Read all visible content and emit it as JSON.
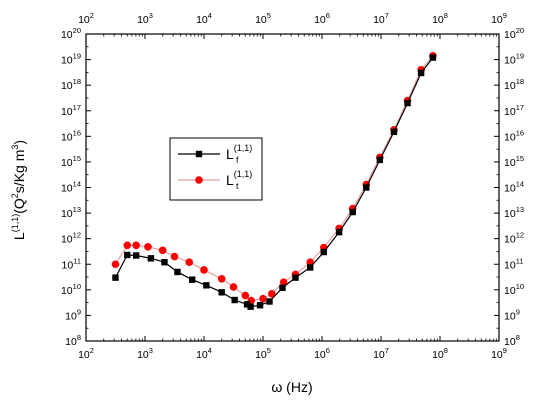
{
  "chart_data": {
    "type": "line",
    "xscale": "log",
    "yscale": "log",
    "xlim": [
      100,
      1000000000
    ],
    "ylim": [
      100000000,
      100000000000000000000
    ],
    "x_tick_exponents": [
      2,
      3,
      4,
      5,
      6,
      7,
      8,
      9
    ],
    "y_tick_exponents": [
      8,
      9,
      10,
      11,
      12,
      13,
      14,
      15,
      16,
      17,
      18,
      19,
      20
    ],
    "tick_base": "10",
    "xlabel": "ω (Hz)",
    "ylabel": {
      "prefix": "L",
      "superscript": "(1,1)",
      "body": "(Q",
      "body_superscript": "2",
      "unit": "s/Kg m",
      "unit_superscript": "3",
      "suffix": ")"
    },
    "grid": false,
    "mirror_ticks": "top-right",
    "legend_position": "center-left",
    "series": [
      {
        "label_main": "L",
        "label_sub": "f",
        "label_sup": "(1,1)",
        "color": "#000000",
        "line_color": "#000000",
        "marker": "square",
        "x": [
          316,
          501,
          708,
          1259,
          2138,
          3548,
          6310,
          10965,
          19953,
          33113,
          53703,
          61660,
          89125,
          128825,
          213796,
          354813,
          630957,
          1071519,
          1949845,
          3311311,
          5623413,
          9549926,
          16595869,
          28183829,
          47863009,
          75857758
        ],
        "y": [
          30000000000.0,
          230000000000.0,
          220000000000.0,
          170000000000.0,
          120000000000.0,
          50000000000.0,
          25000000000.0,
          15000000000.0,
          8000000000.0,
          4000000000.0,
          2700000000.0,
          2200000000.0,
          2500000000.0,
          3500000000.0,
          12000000000.0,
          30000000000.0,
          75000000000.0,
          300000000000.0,
          1800000000000.0,
          11000000000000.0,
          100000000000000.0,
          1200000000000000.0,
          1.5e+16,
          2e+17,
          3e+18,
          1.2e+19
        ]
      },
      {
        "label_main": "L",
        "label_sub": "t",
        "label_sup": "(1,1)",
        "color": "#ff0000",
        "line_color": "#e8a0a0",
        "marker": "circle",
        "x": [
          316,
          501,
          708,
          1122,
          1995,
          3162,
          5623,
          10000,
          19953,
          31623,
          50119,
          63096,
          100000,
          141254,
          223872,
          354813,
          630957,
          1071519,
          1949845,
          3311311,
          5623413,
          9549926,
          16595869,
          28183829,
          47863009,
          75857758
        ],
        "y": [
          100000000000.0,
          550000000000.0,
          550000000000.0,
          480000000000.0,
          350000000000.0,
          200000000000.0,
          120000000000.0,
          60000000000.0,
          27000000000.0,
          13000000000.0,
          6000000000.0,
          3800000000.0,
          4500000000.0,
          7000000000.0,
          20000000000.0,
          40000000000.0,
          120000000000.0,
          450000000000.0,
          2500000000000.0,
          15000000000000.0,
          130000000000000.0,
          1500000000000000.0,
          1.8e+16,
          2.5e+17,
          4e+18,
          1.4e+19
        ]
      }
    ]
  }
}
